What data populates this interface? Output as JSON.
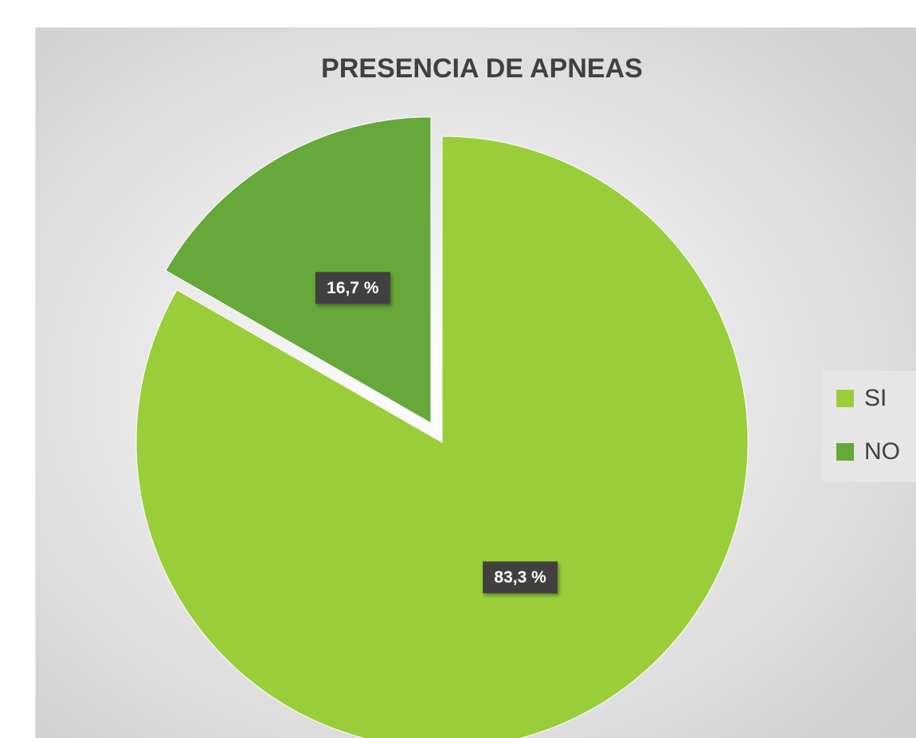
{
  "chart_data": {
    "type": "pie",
    "title": "PRESENCIA DE APNEAS",
    "categories": [
      "SI",
      "NO"
    ],
    "values": [
      83.3,
      16.7
    ],
    "value_labels": [
      "83,3 %",
      "16,7 %"
    ],
    "colors": [
      "#9acd3a",
      "#66a83a"
    ],
    "legend": "right"
  }
}
